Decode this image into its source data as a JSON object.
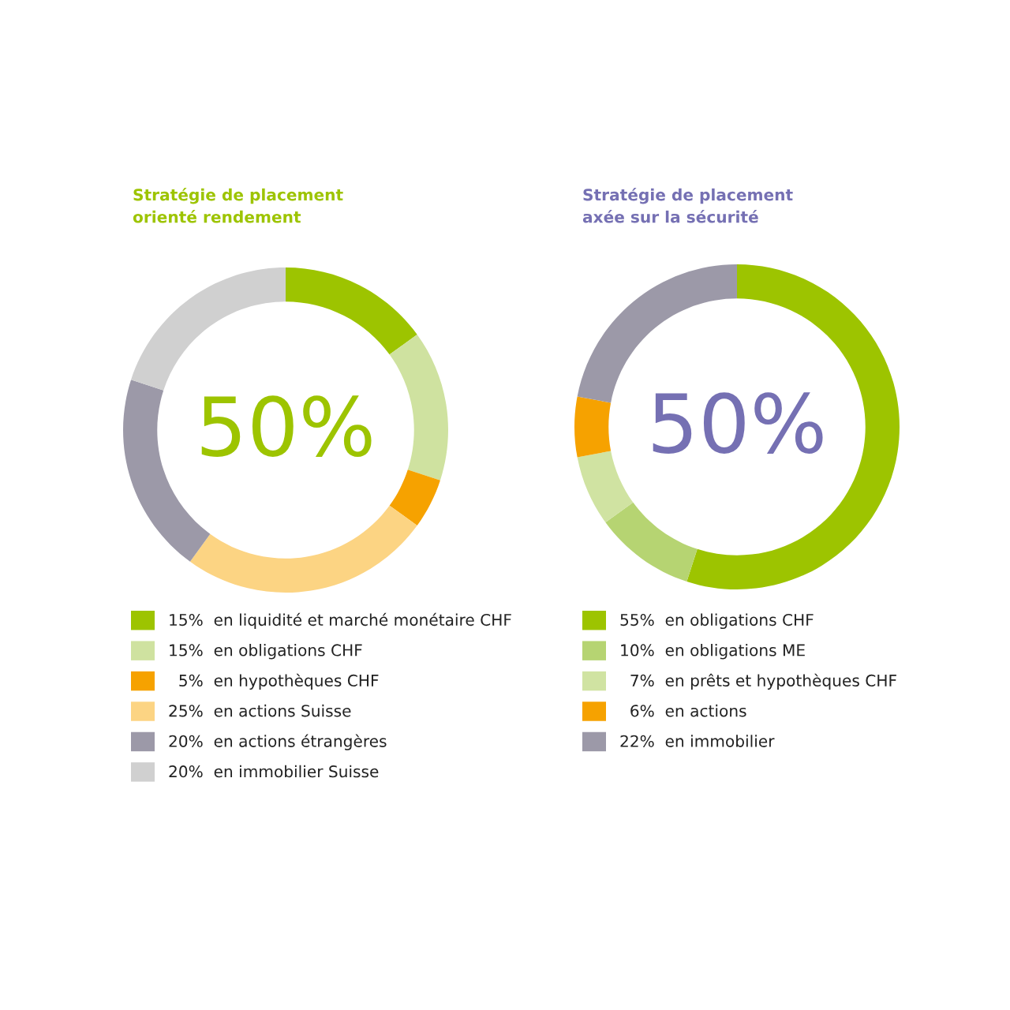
{
  "chart_data": [
    {
      "type": "donut",
      "title": "Stratégie de placement\norienté rendement",
      "categories": [
        "en liquidité et marché monétaire CHF",
        "en obligations CHF",
        "en hypothèques CHF",
        "en actions Suisse",
        "en actions étrangères",
        "en immobilier Suisse"
      ],
      "values": [
        15,
        15,
        5,
        25,
        20,
        20
      ],
      "value_labels": [
        "15%",
        "15%",
        "5%",
        "25%",
        "20%",
        "20%"
      ],
      "colors": [
        "#9dc400",
        "#cfe2a0",
        "#f6a200",
        "#fcd483",
        "#9c99a8",
        "#d0d0d0"
      ],
      "annotations": [
        "50%"
      ],
      "legend": "bottom"
    },
    {
      "type": "donut",
      "title": "Stratégie de placement\naxée sur la sécurité",
      "categories": [
        "en obligations CHF",
        "en obligations ME",
        "en prêts et hypothèques CHF",
        "en actions",
        "en immobilier"
      ],
      "values": [
        55,
        10,
        7,
        6,
        22
      ],
      "value_labels": [
        "55%",
        "10%",
        "7%",
        "6%",
        "22%"
      ],
      "colors": [
        "#9dc400",
        "#b6d472",
        "#d0e3a2",
        "#f6a200",
        "#9c99a8"
      ],
      "annotations": [
        "50%"
      ],
      "legend": "bottom"
    }
  ]
}
